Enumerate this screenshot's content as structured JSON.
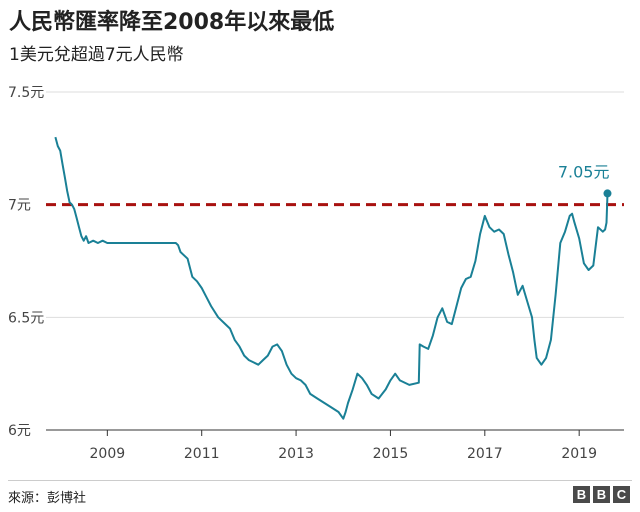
{
  "title": "人民幣匯率降至2008年以來最低",
  "subtitle": "1美元兌超過7元人民幣",
  "source": "來源：彭博社",
  "logo": [
    "B",
    "B",
    "C"
  ],
  "colors": {
    "line": "#1a8096",
    "reference": "#a8110f",
    "grid": "#dddddd",
    "annotation": "#1a8096"
  },
  "chart_data": {
    "type": "line",
    "title": "人民幣匯率降至2008年以來最低",
    "subtitle": "1美元兌超過7元人民幣",
    "xlabel": "",
    "ylabel": "",
    "xlim": [
      2007.7,
      2019.95
    ],
    "ylim": [
      6.0,
      7.5
    ],
    "y_ticks": [
      {
        "value": 7.5,
        "label": "7.5元"
      },
      {
        "value": 7.0,
        "label": "7元"
      },
      {
        "value": 6.5,
        "label": "6.5元"
      },
      {
        "value": 6.0,
        "label": "6元"
      }
    ],
    "x_ticks": [
      {
        "value": 2009,
        "label": "2009"
      },
      {
        "value": 2011,
        "label": "2011"
      },
      {
        "value": 2013,
        "label": "2013"
      },
      {
        "value": 2015,
        "label": "2015"
      },
      {
        "value": 2017,
        "label": "2017"
      },
      {
        "value": 2019,
        "label": "2019"
      }
    ],
    "grid": true,
    "reference_line": {
      "value": 7.0,
      "style": "dashed"
    },
    "annotation": {
      "x": 2019.6,
      "y": 7.05,
      "label": "7.05元"
    },
    "series": [
      {
        "values": [
          [
            2007.9,
            7.3
          ],
          [
            2007.95,
            7.26
          ],
          [
            2008.0,
            7.24
          ],
          [
            2008.05,
            7.18
          ],
          [
            2008.1,
            7.12
          ],
          [
            2008.15,
            7.06
          ],
          [
            2008.2,
            7.01
          ],
          [
            2008.25,
            7.0
          ],
          [
            2008.3,
            6.98
          ],
          [
            2008.35,
            6.94
          ],
          [
            2008.4,
            6.9
          ],
          [
            2008.45,
            6.86
          ],
          [
            2008.5,
            6.84
          ],
          [
            2008.55,
            6.86
          ],
          [
            2008.6,
            6.83
          ],
          [
            2008.7,
            6.84
          ],
          [
            2008.8,
            6.83
          ],
          [
            2008.9,
            6.84
          ],
          [
            2009.0,
            6.83
          ],
          [
            2009.3,
            6.83
          ],
          [
            2009.6,
            6.83
          ],
          [
            2009.9,
            6.83
          ],
          [
            2010.2,
            6.83
          ],
          [
            2010.45,
            6.83
          ],
          [
            2010.5,
            6.82
          ],
          [
            2010.55,
            6.79
          ],
          [
            2010.6,
            6.78
          ],
          [
            2010.7,
            6.76
          ],
          [
            2010.8,
            6.68
          ],
          [
            2010.9,
            6.66
          ],
          [
            2011.0,
            6.63
          ],
          [
            2011.1,
            6.59
          ],
          [
            2011.2,
            6.55
          ],
          [
            2011.35,
            6.5
          ],
          [
            2011.5,
            6.47
          ],
          [
            2011.6,
            6.45
          ],
          [
            2011.7,
            6.4
          ],
          [
            2011.8,
            6.37
          ],
          [
            2011.9,
            6.33
          ],
          [
            2012.0,
            6.31
          ],
          [
            2012.1,
            6.3
          ],
          [
            2012.2,
            6.29
          ],
          [
            2012.3,
            6.31
          ],
          [
            2012.4,
            6.33
          ],
          [
            2012.5,
            6.37
          ],
          [
            2012.6,
            6.38
          ],
          [
            2012.7,
            6.35
          ],
          [
            2012.8,
            6.29
          ],
          [
            2012.9,
            6.25
          ],
          [
            2013.0,
            6.23
          ],
          [
            2013.1,
            6.22
          ],
          [
            2013.2,
            6.2
          ],
          [
            2013.3,
            6.16
          ],
          [
            2013.45,
            6.14
          ],
          [
            2013.6,
            6.12
          ],
          [
            2013.75,
            6.1
          ],
          [
            2013.9,
            6.08
          ],
          [
            2014.0,
            6.05
          ],
          [
            2014.05,
            6.08
          ],
          [
            2014.1,
            6.12
          ],
          [
            2014.2,
            6.18
          ],
          [
            2014.3,
            6.25
          ],
          [
            2014.4,
            6.23
          ],
          [
            2014.5,
            6.2
          ],
          [
            2014.6,
            6.16
          ],
          [
            2014.75,
            6.14
          ],
          [
            2014.9,
            6.18
          ],
          [
            2015.0,
            6.22
          ],
          [
            2015.1,
            6.25
          ],
          [
            2015.2,
            6.22
          ],
          [
            2015.4,
            6.2
          ],
          [
            2015.6,
            6.21
          ],
          [
            2015.62,
            6.38
          ],
          [
            2015.7,
            6.37
          ],
          [
            2015.8,
            6.36
          ],
          [
            2015.9,
            6.42
          ],
          [
            2016.0,
            6.5
          ],
          [
            2016.1,
            6.54
          ],
          [
            2016.2,
            6.48
          ],
          [
            2016.3,
            6.47
          ],
          [
            2016.4,
            6.55
          ],
          [
            2016.5,
            6.63
          ],
          [
            2016.6,
            6.67
          ],
          [
            2016.7,
            6.68
          ],
          [
            2016.8,
            6.75
          ],
          [
            2016.9,
            6.87
          ],
          [
            2017.0,
            6.95
          ],
          [
            2017.1,
            6.9
          ],
          [
            2017.2,
            6.88
          ],
          [
            2017.3,
            6.89
          ],
          [
            2017.4,
            6.87
          ],
          [
            2017.5,
            6.78
          ],
          [
            2017.6,
            6.7
          ],
          [
            2017.7,
            6.6
          ],
          [
            2017.8,
            6.64
          ],
          [
            2017.9,
            6.57
          ],
          [
            2018.0,
            6.5
          ],
          [
            2018.05,
            6.4
          ],
          [
            2018.1,
            6.32
          ],
          [
            2018.2,
            6.29
          ],
          [
            2018.3,
            6.32
          ],
          [
            2018.4,
            6.4
          ],
          [
            2018.5,
            6.6
          ],
          [
            2018.6,
            6.83
          ],
          [
            2018.7,
            6.88
          ],
          [
            2018.8,
            6.95
          ],
          [
            2018.85,
            6.96
          ],
          [
            2018.9,
            6.92
          ],
          [
            2019.0,
            6.85
          ],
          [
            2019.1,
            6.74
          ],
          [
            2019.2,
            6.71
          ],
          [
            2019.3,
            6.73
          ],
          [
            2019.4,
            6.9
          ],
          [
            2019.5,
            6.88
          ],
          [
            2019.55,
            6.89
          ],
          [
            2019.58,
            6.92
          ],
          [
            2019.6,
            7.05
          ]
        ]
      }
    ]
  }
}
